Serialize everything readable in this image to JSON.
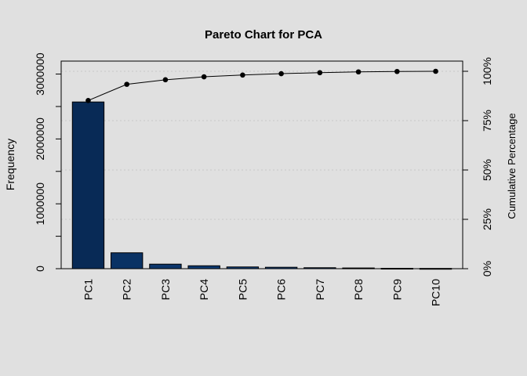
{
  "chart_data": {
    "type": "bar",
    "title": "Pareto Chart for PCA",
    "xlabel": "",
    "ylabel": "Frequency",
    "y2label": "Cumulative Percentage",
    "categories": [
      "PC1",
      "PC2",
      "PC3",
      "PC4",
      "PC5",
      "PC6",
      "PC7",
      "PC8",
      "PC9",
      "PC10"
    ],
    "values": [
      2570000,
      245000,
      70000,
      45000,
      27000,
      22000,
      15000,
      11000,
      6000,
      4000
    ],
    "cumulative_percent": [
      85.2,
      93.4,
      95.7,
      97.2,
      98.1,
      98.8,
      99.3,
      99.7,
      99.9,
      100
    ],
    "ylim": [
      0,
      3000000
    ],
    "yticks": [
      0,
      1000000,
      2000000,
      3000000
    ],
    "y2ticks": [
      "0%",
      "25%",
      "50%",
      "75%",
      "100%"
    ],
    "y2lim": [
      0,
      100
    ],
    "grid": true,
    "colors": [
      "#082a56",
      "#0a3264",
      "#0c366b",
      "#0e3a72",
      "#103e79",
      "#124280",
      "#144687",
      "#164a8e",
      "#184e95",
      "#1a529c"
    ]
  }
}
